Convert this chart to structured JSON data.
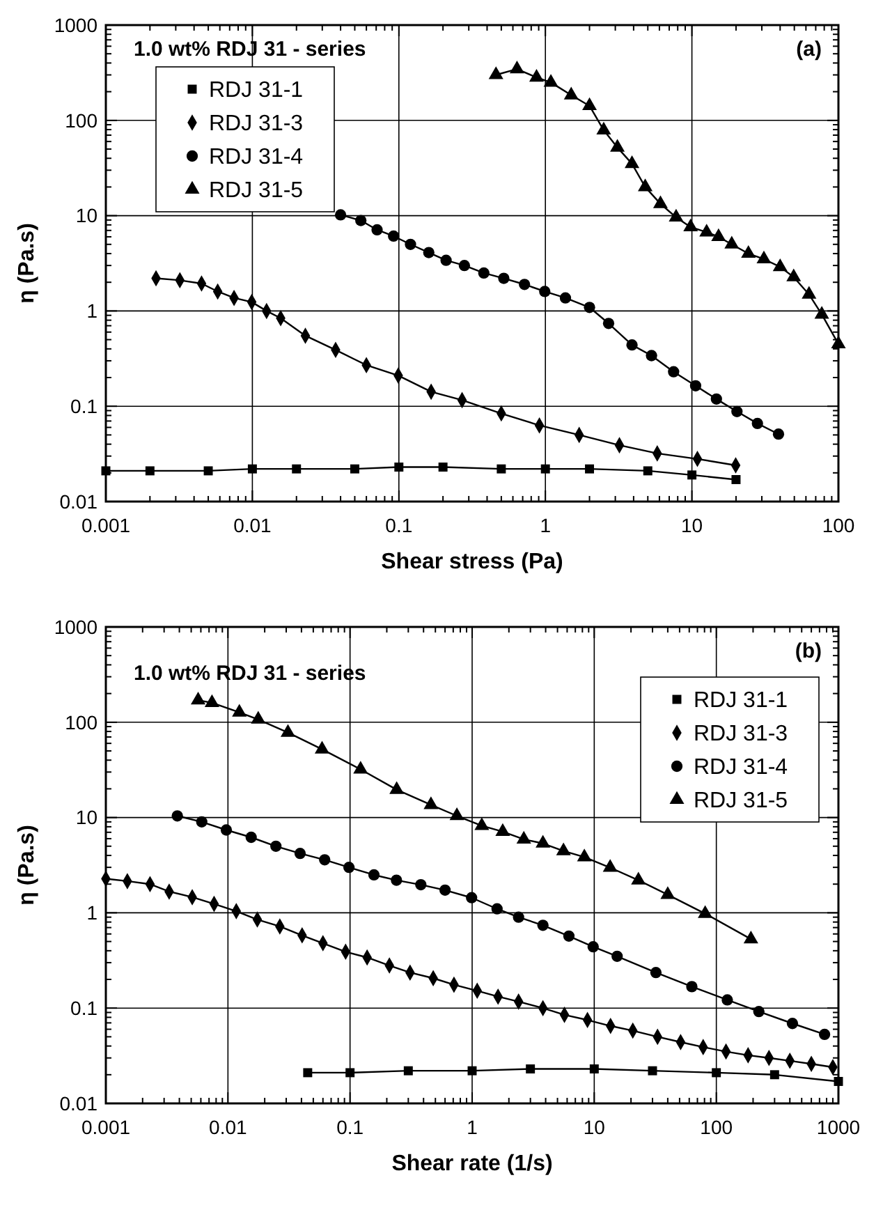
{
  "chart_data": [
    {
      "type": "line",
      "xlabel": "Shear stress (Pa)",
      "ylabel": "η (Pa.s)",
      "log": "xy",
      "grid": true,
      "legend": "top left",
      "line_style": "solid",
      "annotations": [
        "1.0 wt% RDJ 31 - series",
        "(a)"
      ],
      "xlim": [
        0.001,
        100
      ],
      "xticks": [
        0.001,
        0.01,
        0.1,
        1,
        10,
        100
      ],
      "ylim": [
        0.01,
        1000
      ],
      "yticks": [
        0.01,
        0.1,
        1,
        10,
        100,
        1000
      ],
      "series": [
        {
          "name": "RDJ 31-1",
          "color": "#000000",
          "marker": "square",
          "x": [
            0.001,
            0.002,
            0.005,
            0.01,
            0.02,
            0.05,
            0.1,
            0.2,
            0.5,
            1,
            2,
            5,
            10,
            20
          ],
          "values": [
            0.021,
            0.021,
            0.021,
            0.022,
            0.022,
            0.022,
            0.023,
            0.023,
            0.022,
            0.022,
            0.022,
            0.021,
            0.019,
            0.017
          ]
        },
        {
          "name": "RDJ 31-3",
          "color": "#000000",
          "marker": "diamond",
          "x": [
            0.0022,
            0.0032,
            0.0045,
            0.0058,
            0.0075,
            0.0099,
            0.0125,
            0.0156,
            0.023,
            0.037,
            0.06,
            0.099,
            0.166,
            0.27,
            0.5,
            0.91,
            1.7,
            3.2,
            5.8,
            10.9,
            19.9
          ],
          "values": [
            2.2,
            2.1,
            1.94,
            1.6,
            1.37,
            1.24,
            1.0,
            0.84,
            0.55,
            0.39,
            0.27,
            0.21,
            0.142,
            0.116,
            0.084,
            0.063,
            0.05,
            0.039,
            0.032,
            0.028,
            0.024
          ]
        },
        {
          "name": "RDJ 31-4",
          "color": "#000000",
          "marker": "circle",
          "x": [
            0.04,
            0.055,
            0.071,
            0.092,
            0.12,
            0.16,
            0.21,
            0.28,
            0.38,
            0.52,
            0.72,
            0.99,
            1.37,
            2.0,
            2.7,
            3.9,
            5.3,
            7.5,
            10.6,
            14.7,
            20.3,
            28,
            39
          ],
          "values": [
            10.2,
            8.9,
            7.1,
            6.1,
            5.0,
            4.1,
            3.4,
            3.0,
            2.5,
            2.2,
            1.9,
            1.6,
            1.37,
            1.09,
            0.74,
            0.44,
            0.34,
            0.23,
            0.164,
            0.119,
            0.088,
            0.066,
            0.051
          ]
        },
        {
          "name": "RDJ 31-5",
          "color": "#000000",
          "marker": "triangle",
          "x": [
            0.46,
            0.64,
            0.87,
            1.09,
            1.5,
            2.0,
            2.5,
            3.1,
            3.9,
            4.8,
            6.1,
            7.8,
            9.8,
            12.6,
            15.2,
            18.7,
            24.3,
            31,
            40,
            49.5,
            63,
            77,
            100
          ],
          "values": [
            300,
            346,
            282,
            250,
            184,
            142,
            79,
            52,
            35,
            20,
            13.3,
            9.6,
            7.6,
            6.7,
            6.0,
            5.0,
            4.0,
            3.5,
            2.9,
            2.27,
            1.49,
            0.92,
            0.45
          ]
        }
      ]
    },
    {
      "type": "line",
      "xlabel": "Shear rate (1/s)",
      "ylabel": "η (Pa.s)",
      "log": "xy",
      "grid": true,
      "legend": "top right",
      "line_style": "solid",
      "annotations": [
        "1.0 wt% RDJ 31 - series",
        "(b)"
      ],
      "xlim": [
        0.001,
        1000
      ],
      "xticks": [
        0.001,
        0.01,
        0.1,
        1,
        10,
        100,
        1000
      ],
      "ylim": [
        0.01,
        1000
      ],
      "yticks": [
        0.01,
        0.1,
        1,
        10,
        100,
        1000
      ],
      "series": [
        {
          "name": "RDJ 31-1",
          "color": "#000000",
          "marker": "square",
          "x": [
            0.045,
            0.1,
            0.3,
            1,
            3,
            10,
            30,
            100,
            300,
            1000
          ],
          "values": [
            0.021,
            0.021,
            0.022,
            0.022,
            0.023,
            0.023,
            0.022,
            0.021,
            0.02,
            0.017
          ]
        },
        {
          "name": "RDJ 31-3",
          "color": "#000000",
          "marker": "diamond",
          "x": [
            0.001,
            0.0015,
            0.0023,
            0.0033,
            0.0051,
            0.0077,
            0.0117,
            0.0174,
            0.0266,
            0.0405,
            0.06,
            0.092,
            0.138,
            0.21,
            0.31,
            0.48,
            0.71,
            1.1,
            1.63,
            2.4,
            3.8,
            5.7,
            8.8,
            13.6,
            20.7,
            33,
            51,
            78,
            120,
            182,
            270,
            400,
            600,
            900
          ],
          "values": [
            2.28,
            2.15,
            2.0,
            1.67,
            1.46,
            1.24,
            1.04,
            0.85,
            0.72,
            0.58,
            0.48,
            0.39,
            0.34,
            0.28,
            0.236,
            0.206,
            0.176,
            0.152,
            0.132,
            0.117,
            0.1,
            0.085,
            0.075,
            0.065,
            0.058,
            0.05,
            0.044,
            0.039,
            0.035,
            0.032,
            0.03,
            0.028,
            0.026,
            0.024
          ]
        },
        {
          "name": "RDJ 31-4",
          "color": "#000000",
          "marker": "circle",
          "x": [
            0.00385,
            0.0061,
            0.0097,
            0.0155,
            0.0247,
            0.039,
            0.062,
            0.098,
            0.157,
            0.24,
            0.38,
            0.6,
            0.99,
            1.6,
            2.4,
            3.8,
            6.2,
            9.8,
            15.4,
            32,
            63,
            123,
            223,
            420,
            770
          ],
          "values": [
            10.4,
            9.0,
            7.4,
            6.2,
            5.0,
            4.2,
            3.6,
            3.0,
            2.5,
            2.2,
            1.97,
            1.73,
            1.44,
            1.1,
            0.9,
            0.74,
            0.57,
            0.44,
            0.35,
            0.236,
            0.168,
            0.122,
            0.092,
            0.069,
            0.053
          ]
        },
        {
          "name": "RDJ 31-5",
          "color": "#000000",
          "marker": "triangle",
          "x": [
            0.0057,
            0.0074,
            0.0124,
            0.0177,
            0.031,
            0.059,
            0.122,
            0.241,
            0.46,
            0.75,
            1.2,
            1.78,
            2.65,
            3.8,
            5.6,
            8.3,
            13.5,
            23,
            40,
            81,
            192
          ],
          "values": [
            170,
            160,
            127,
            107,
            78,
            52,
            32,
            19.6,
            13.6,
            10.4,
            8.2,
            7.1,
            5.9,
            5.35,
            4.45,
            3.85,
            2.98,
            2.2,
            1.55,
            0.98,
            0.53
          ]
        }
      ]
    }
  ]
}
